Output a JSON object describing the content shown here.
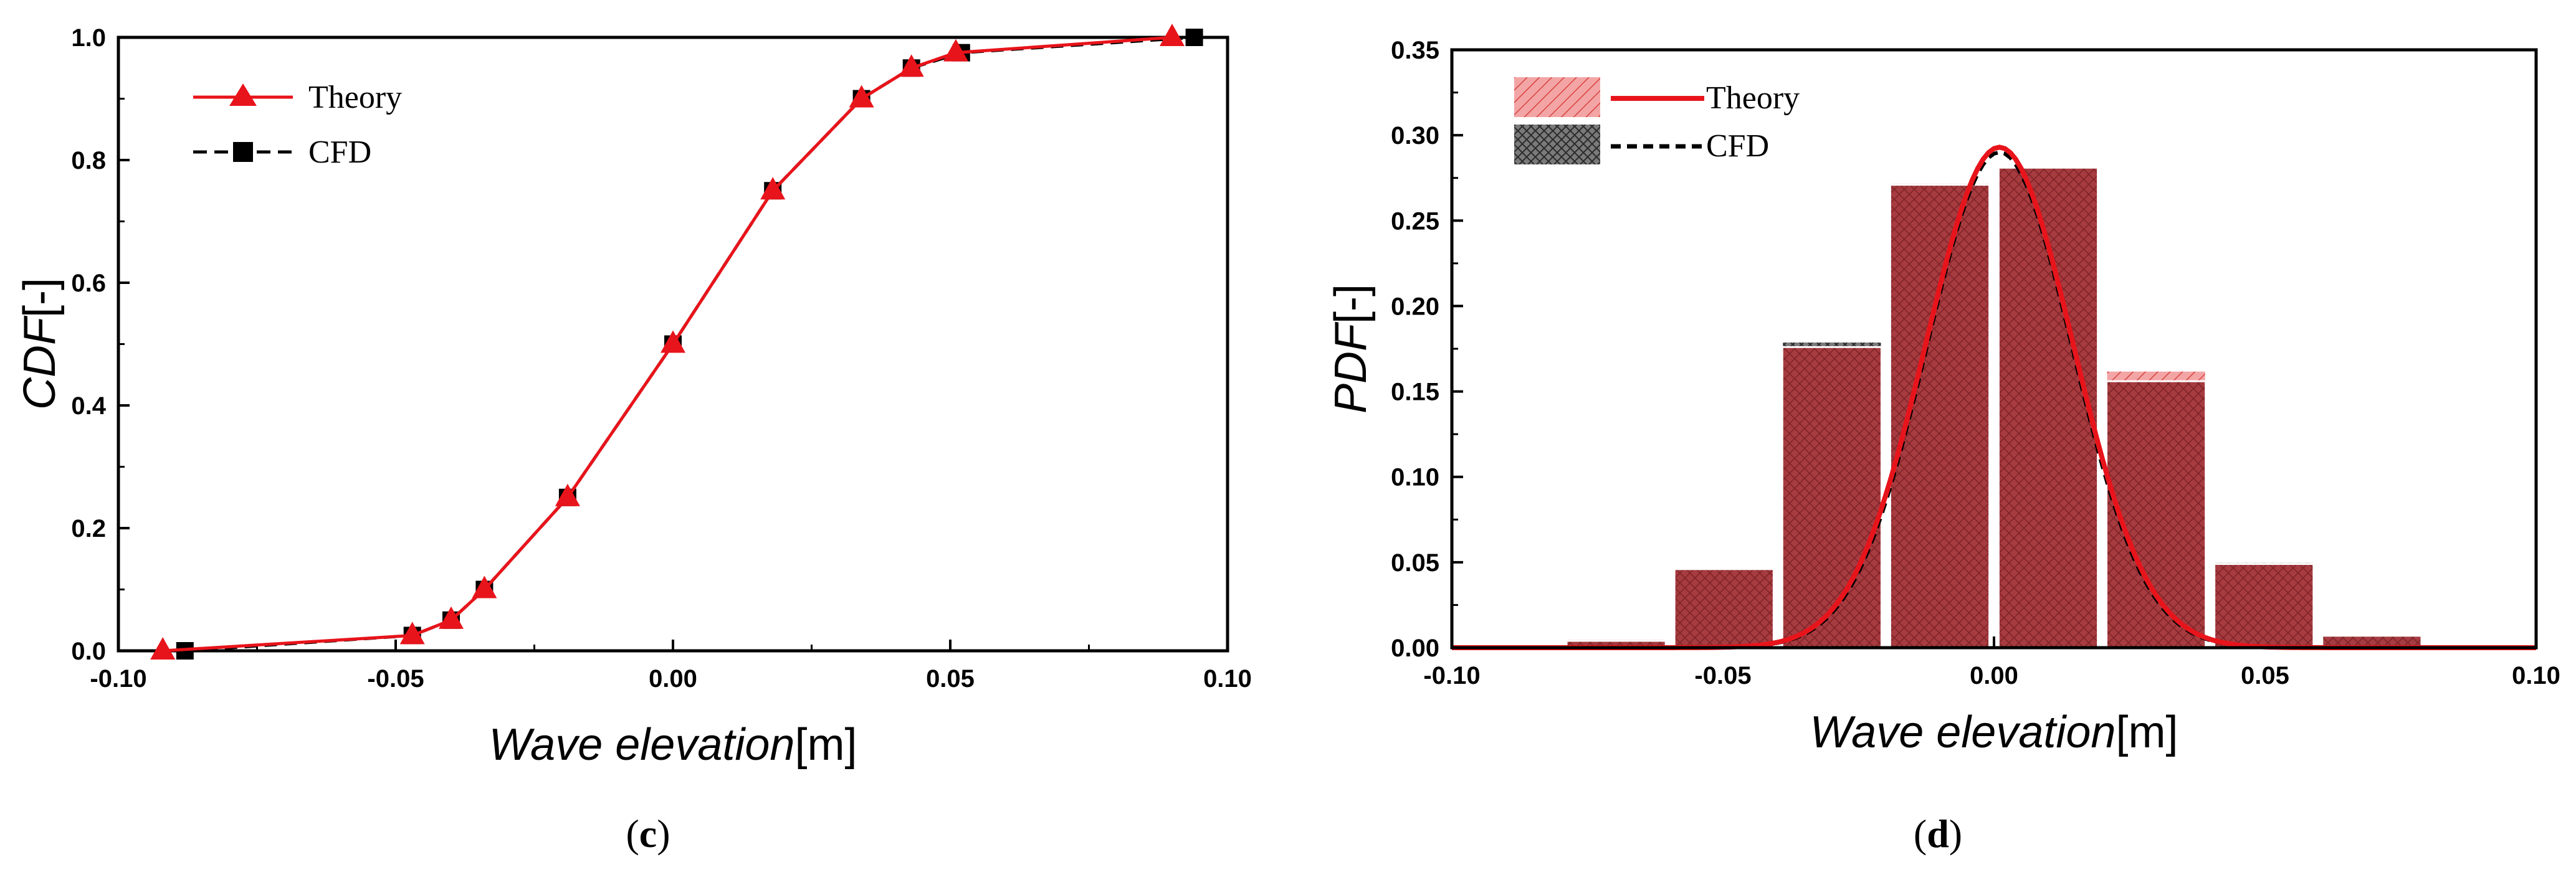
{
  "chart_data": [
    {
      "type": "line",
      "panel_label": "c",
      "xlabel": {
        "italic": "Wave elevation",
        "unit": "[m]"
      },
      "ylabel": {
        "italic": "CDF",
        "unit": "[-]"
      },
      "xlim": [
        -0.1,
        0.1
      ],
      "ylim": [
        0.0,
        1.0
      ],
      "xticks": [
        "-0.10",
        "-0.05",
        "0.00",
        "0.05",
        "0.10"
      ],
      "yticks": [
        "0.0",
        "0.2",
        "0.4",
        "0.6",
        "0.8",
        "1.0"
      ],
      "legend_position": "top-left",
      "series": [
        {
          "name": "Theory",
          "color": "#e8141b",
          "style": "solid",
          "marker": "triangle",
          "x": [
            -0.092,
            -0.047,
            -0.04,
            -0.034,
            -0.019,
            0.0,
            0.018,
            0.034,
            0.043,
            0.051,
            0.09
          ],
          "y": [
            0.0,
            0.025,
            0.05,
            0.1,
            0.25,
            0.5,
            0.75,
            0.9,
            0.95,
            0.975,
            1.0
          ]
        },
        {
          "name": "CFD",
          "color": "#000000",
          "style": "dashed",
          "marker": "square",
          "x": [
            -0.088,
            -0.047,
            -0.04,
            -0.034,
            -0.019,
            0.0,
            0.018,
            0.034,
            0.043,
            0.052,
            0.094
          ],
          "y": [
            0.0,
            0.025,
            0.05,
            0.1,
            0.25,
            0.5,
            0.75,
            0.9,
            0.95,
            0.975,
            1.0
          ]
        }
      ]
    },
    {
      "type": "bar",
      "panel_label": "d",
      "xlabel": {
        "italic": "Wave elevation",
        "unit": "[m]"
      },
      "ylabel": {
        "italic": "PDF",
        "unit": "[-]"
      },
      "xlim": [
        -0.1,
        0.1
      ],
      "ylim": [
        0.0,
        0.35
      ],
      "xticks": [
        "-0.10",
        "-0.05",
        "0.00",
        "0.05",
        "0.10"
      ],
      "yticks": [
        "0.00",
        "0.05",
        "0.10",
        "0.15",
        "0.20",
        "0.25",
        "0.30",
        "0.35"
      ],
      "legend_position": "top-left",
      "bin_centers": [
        -0.0896,
        -0.0697,
        -0.0498,
        -0.0299,
        -0.01,
        0.01,
        0.0299,
        0.0498,
        0.0697,
        0.0896
      ],
      "bin_width": 0.0199,
      "bars": [
        {
          "name": "Theory",
          "color": "#f08a8a",
          "values": [
            0.001,
            0.005,
            0.046,
            0.176,
            0.272,
            0.281,
            0.162,
            0.049,
            0.007,
            0.001
          ]
        },
        {
          "name": "CFD",
          "color": "#555555",
          "values": [
            0.001,
            0.004,
            0.046,
            0.179,
            0.271,
            0.281,
            0.156,
            0.05,
            0.007,
            0.001
          ]
        }
      ],
      "overlap_color": "#a53a3e",
      "curves": [
        {
          "name": "Theory",
          "color": "#e8141b",
          "style": "solid",
          "mean": 0.001,
          "std": 0.0136,
          "peak": 0.293
        },
        {
          "name": "CFD",
          "color": "#000000",
          "style": "dashed",
          "mean": 0.001,
          "std": 0.0134,
          "peak": 0.29
        }
      ]
    }
  ]
}
